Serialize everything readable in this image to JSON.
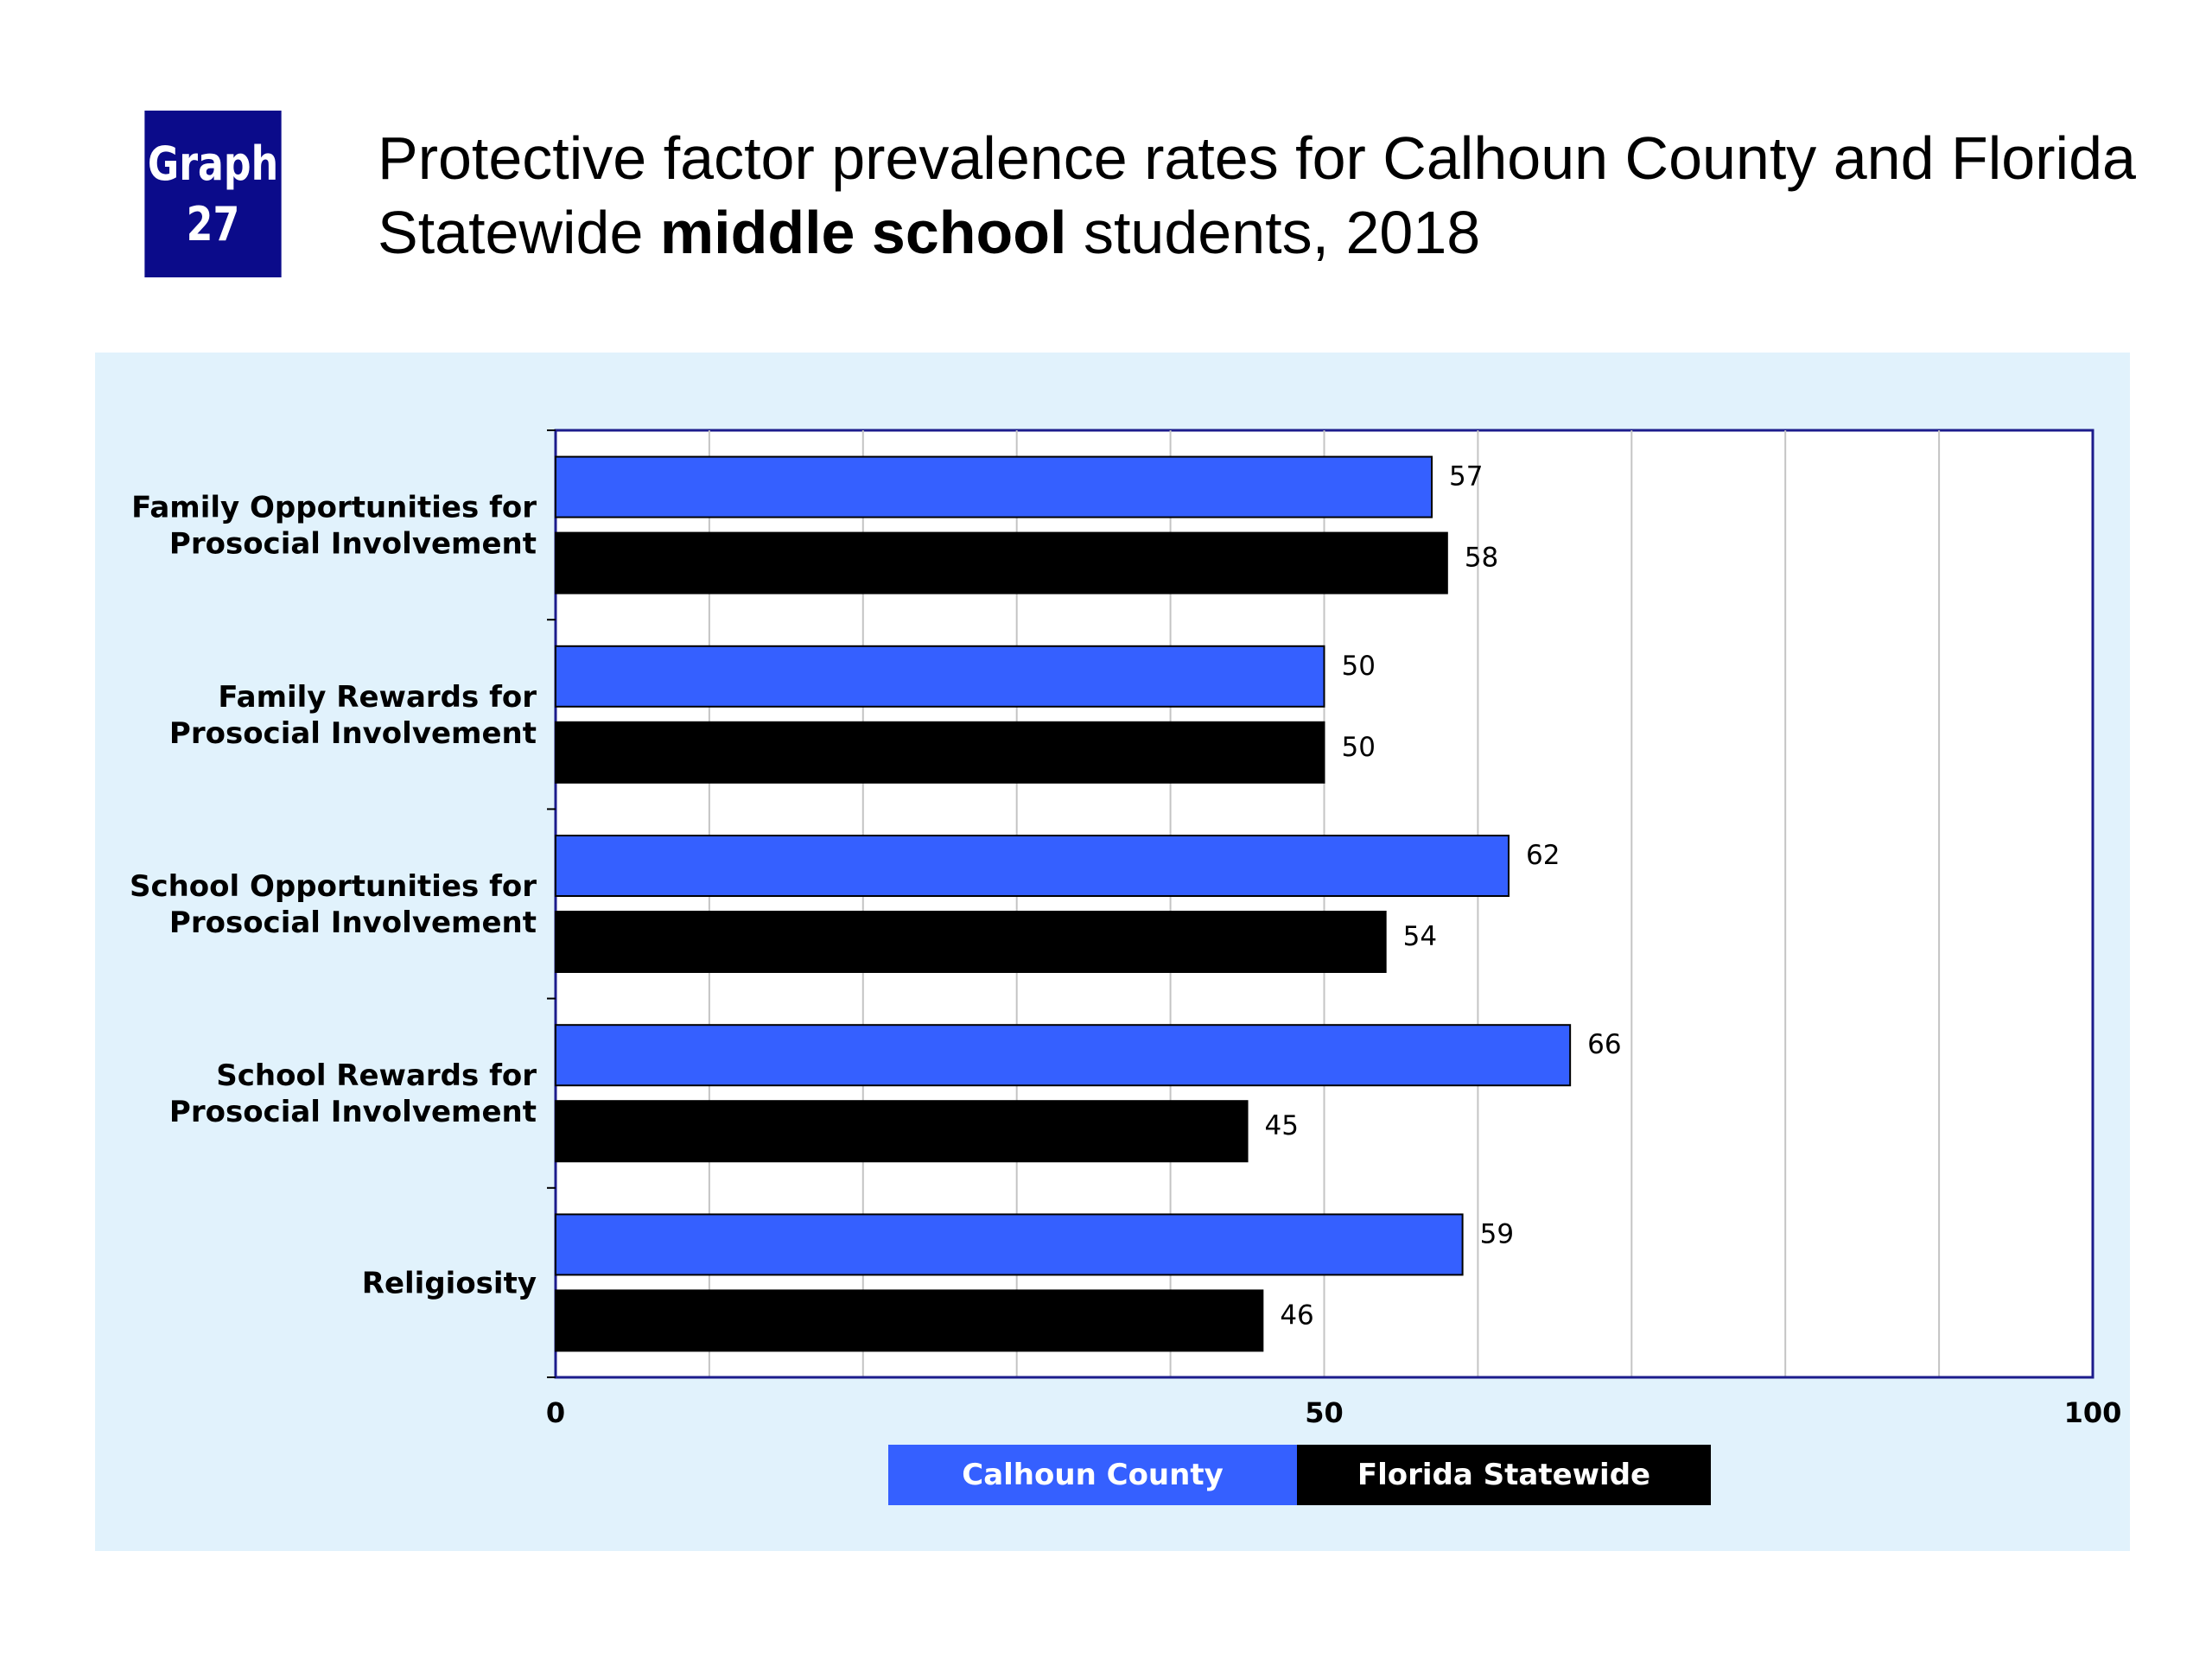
{
  "badge": {
    "line1": "Graph",
    "line2": "27"
  },
  "header": {
    "title_part1": "Protective factor prevalence rates for Calhoun County and Florida Statewide ",
    "title_bold": "middle school",
    "title_part2": " students, 2018"
  },
  "colors": {
    "calhoun": "#3560ff",
    "florida": "#000000",
    "panel": "#e1f2fc",
    "axis": "#1c1c8c",
    "badge": "#0b0b8a"
  },
  "chart_data": {
    "type": "bar",
    "orientation": "horizontal",
    "title": "Protective factor prevalence rates for Calhoun County and Florida Statewide middle school students, 2018",
    "categories": [
      [
        "Family Opportunities for",
        "Prosocial Involvement"
      ],
      [
        "Family Rewards for",
        "Prosocial Involvement"
      ],
      [
        "School Opportunities for",
        "Prosocial Involvement"
      ],
      [
        "School Rewards for",
        "Prosocial Involvement"
      ],
      [
        "Religiosity"
      ]
    ],
    "series": [
      {
        "name": "Calhoun County",
        "color": "#3560ff",
        "values": [
          57,
          50,
          62,
          66,
          59
        ]
      },
      {
        "name": "Florida Statewide",
        "color": "#000000",
        "values": [
          58,
          50,
          54,
          45,
          46
        ]
      }
    ],
    "xlim": [
      0,
      100
    ],
    "xticks": [
      0,
      50,
      100
    ],
    "gridlines": [
      10,
      20,
      30,
      40,
      50,
      60,
      70,
      80,
      90,
      100
    ],
    "grid": true,
    "legend_position": "bottom-center"
  }
}
